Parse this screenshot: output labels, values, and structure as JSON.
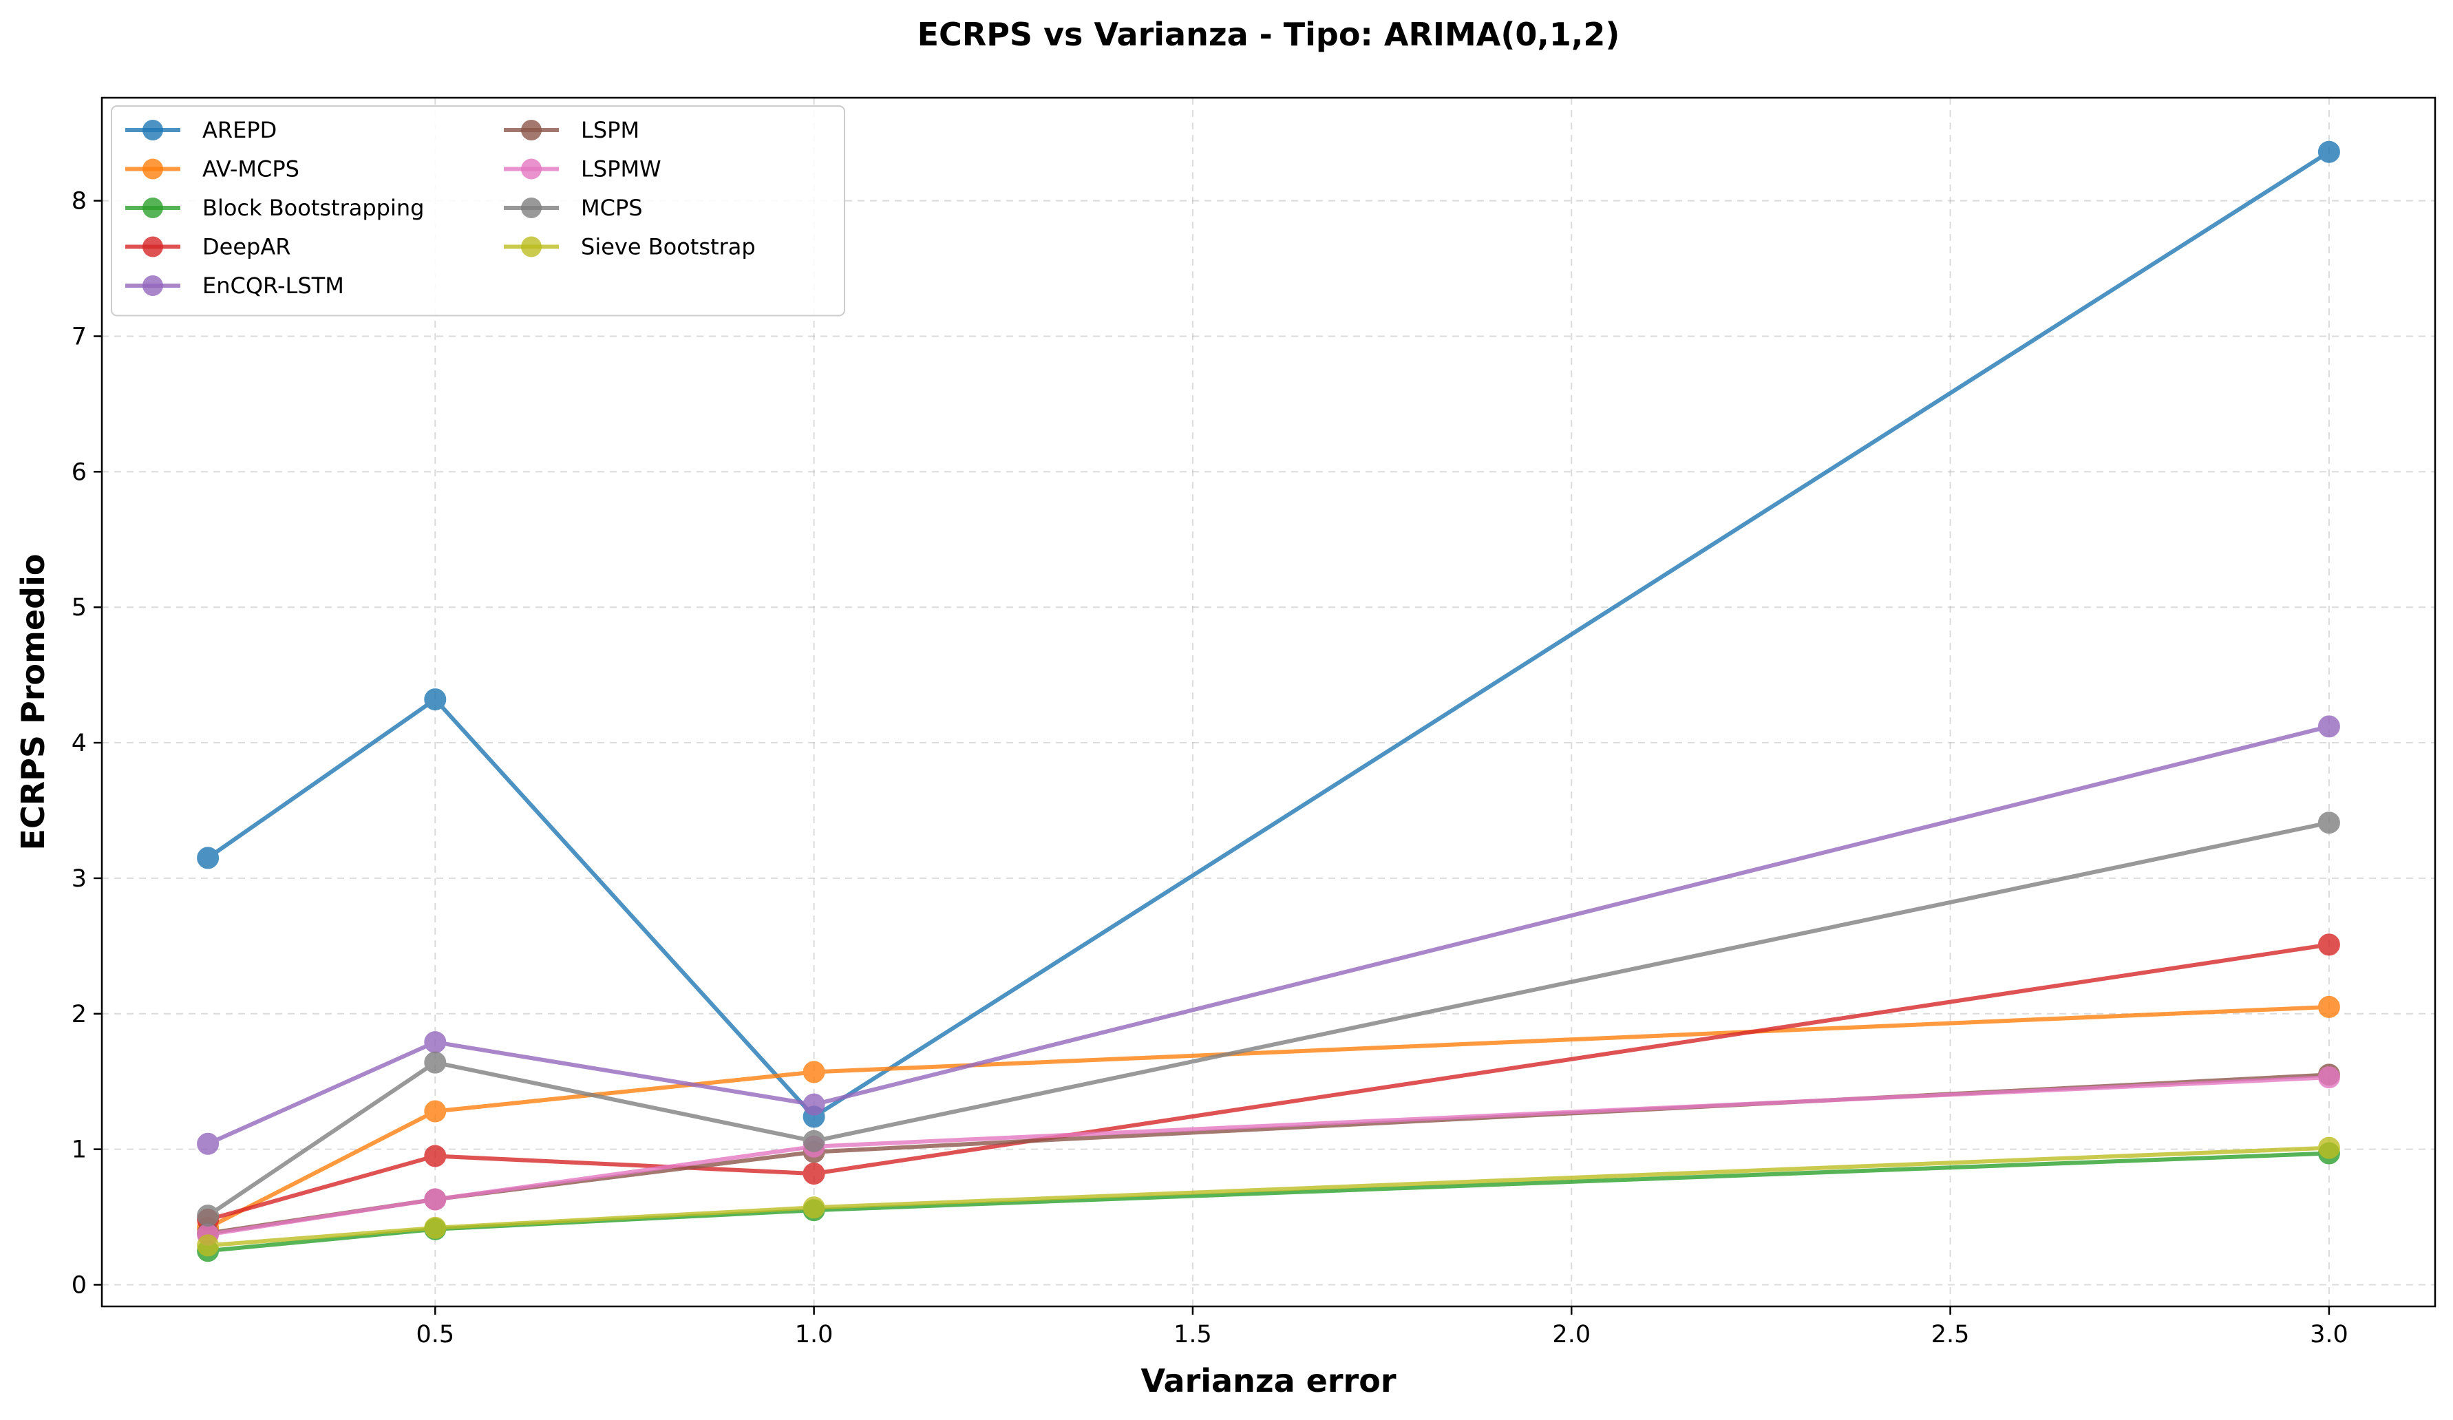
{
  "chart_data": {
    "type": "line",
    "title": "ECRPS vs Varianza - Tipo: ARIMA(0,1,2)",
    "xlabel": "Varianza error",
    "ylabel": "ECRPS Promedio",
    "x": [
      0.2,
      0.5,
      1.0,
      3.0
    ],
    "xlim": [
      0.06,
      3.14
    ],
    "ylim": [
      -0.16,
      8.76
    ],
    "xticks": [
      0.5,
      1.0,
      1.5,
      2.0,
      2.5,
      3.0
    ],
    "xtick_labels": [
      "0.5",
      "1.0",
      "1.5",
      "2.0",
      "2.5",
      "3.0"
    ],
    "yticks": [
      0,
      1,
      2,
      3,
      4,
      5,
      6,
      7,
      8
    ],
    "ytick_labels": [
      "0",
      "1",
      "2",
      "3",
      "4",
      "5",
      "6",
      "7",
      "8"
    ],
    "grid": true,
    "legend_position": "top-left",
    "legend_columns": 2,
    "series": [
      {
        "name": "AREPD",
        "color": "#1f77b4",
        "values": [
          3.15,
          4.32,
          1.24,
          8.36
        ]
      },
      {
        "name": "AV-MCPS",
        "color": "#ff7f0e",
        "values": [
          0.42,
          1.28,
          1.57,
          2.05
        ]
      },
      {
        "name": "Block Bootstrapping",
        "color": "#2ca02c",
        "values": [
          0.25,
          0.41,
          0.55,
          0.97
        ]
      },
      {
        "name": "DeepAR",
        "color": "#d62728",
        "values": [
          0.48,
          0.95,
          0.82,
          2.51
        ]
      },
      {
        "name": "EnCQR-LSTM",
        "color": "#9467bd",
        "values": [
          1.04,
          1.79,
          1.33,
          4.12
        ]
      },
      {
        "name": "LSPM",
        "color": "#8c564b",
        "values": [
          0.38,
          0.63,
          0.98,
          1.55
        ]
      },
      {
        "name": "LSPMW",
        "color": "#e377c2",
        "values": [
          0.37,
          0.63,
          1.02,
          1.53
        ]
      },
      {
        "name": "MCPS",
        "color": "#7f7f7f",
        "values": [
          0.51,
          1.64,
          1.06,
          3.41
        ]
      },
      {
        "name": "Sieve Bootstrap",
        "color": "#bcbd22",
        "values": [
          0.29,
          0.42,
          0.57,
          1.01
        ]
      }
    ]
  }
}
